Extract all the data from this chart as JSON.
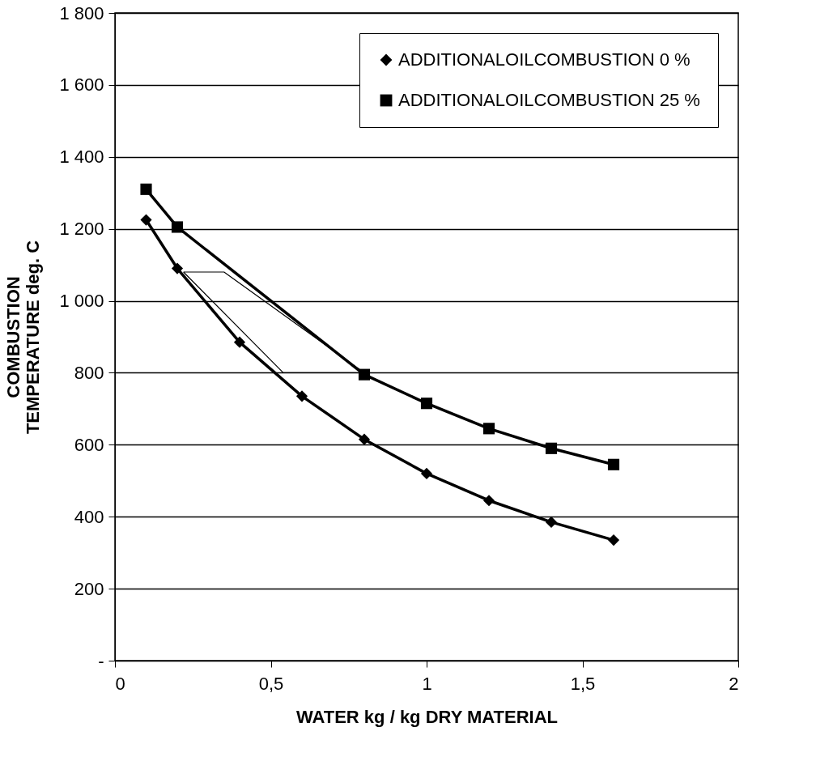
{
  "chart_data": {
    "type": "line",
    "xlabel": "WATER kg / kg DRY MATERIAL",
    "ylabel": "COMBUSTION\nTEMPERATURE deg. C",
    "x": [
      0.1,
      0.2,
      0.4,
      0.6,
      0.8,
      1.0,
      1.2,
      1.4,
      1.6
    ],
    "series": [
      {
        "name": "ADDITIONALOILCOMBUSTION 0 %",
        "color": "#000000",
        "marker": "diamond",
        "values": [
          1225,
          1090,
          885,
          735,
          615,
          520,
          445,
          385,
          335
        ]
      },
      {
        "name": "ADDITIONALOILCOMBUSTION 25 %",
        "color": "#000000",
        "marker": "square",
        "x": [
          0.1,
          0.2,
          0.8,
          1.0,
          1.2,
          1.4,
          1.6
        ],
        "values": [
          1310,
          1205,
          795,
          715,
          645,
          590,
          545
        ]
      },
      {
        "color": "#000000",
        "marker": "none",
        "x": [
          0.22,
          0.35,
          0.8
        ],
        "values": [
          1080,
          1080,
          800
        ]
      },
      {
        "color": "#000000",
        "marker": "none",
        "x": [
          0.22,
          0.54,
          0.8
        ],
        "values": [
          1080,
          800,
          800
        ]
      }
    ],
    "xlim": [
      0,
      2
    ],
    "xticks": [
      0,
      {
        "value": 0.5,
        "label": "0,5"
      },
      1,
      {
        "value": 1.5,
        "label": "1,5"
      },
      2
    ],
    "ylim": [
      0,
      1800
    ],
    "yticks": [
      {
        "value": 0,
        "label": "-"
      },
      200,
      400,
      600,
      800,
      {
        "value": 1000,
        "label": "1 000"
      },
      {
        "value": 1200,
        "label": "1 200"
      },
      {
        "value": 1400,
        "label": "1 400"
      },
      {
        "value": 1600,
        "label": "1 600"
      },
      {
        "value": 1800,
        "label": "1 800"
      }
    ],
    "grid": "y",
    "legend": "top right",
    "line_style": "solid"
  }
}
